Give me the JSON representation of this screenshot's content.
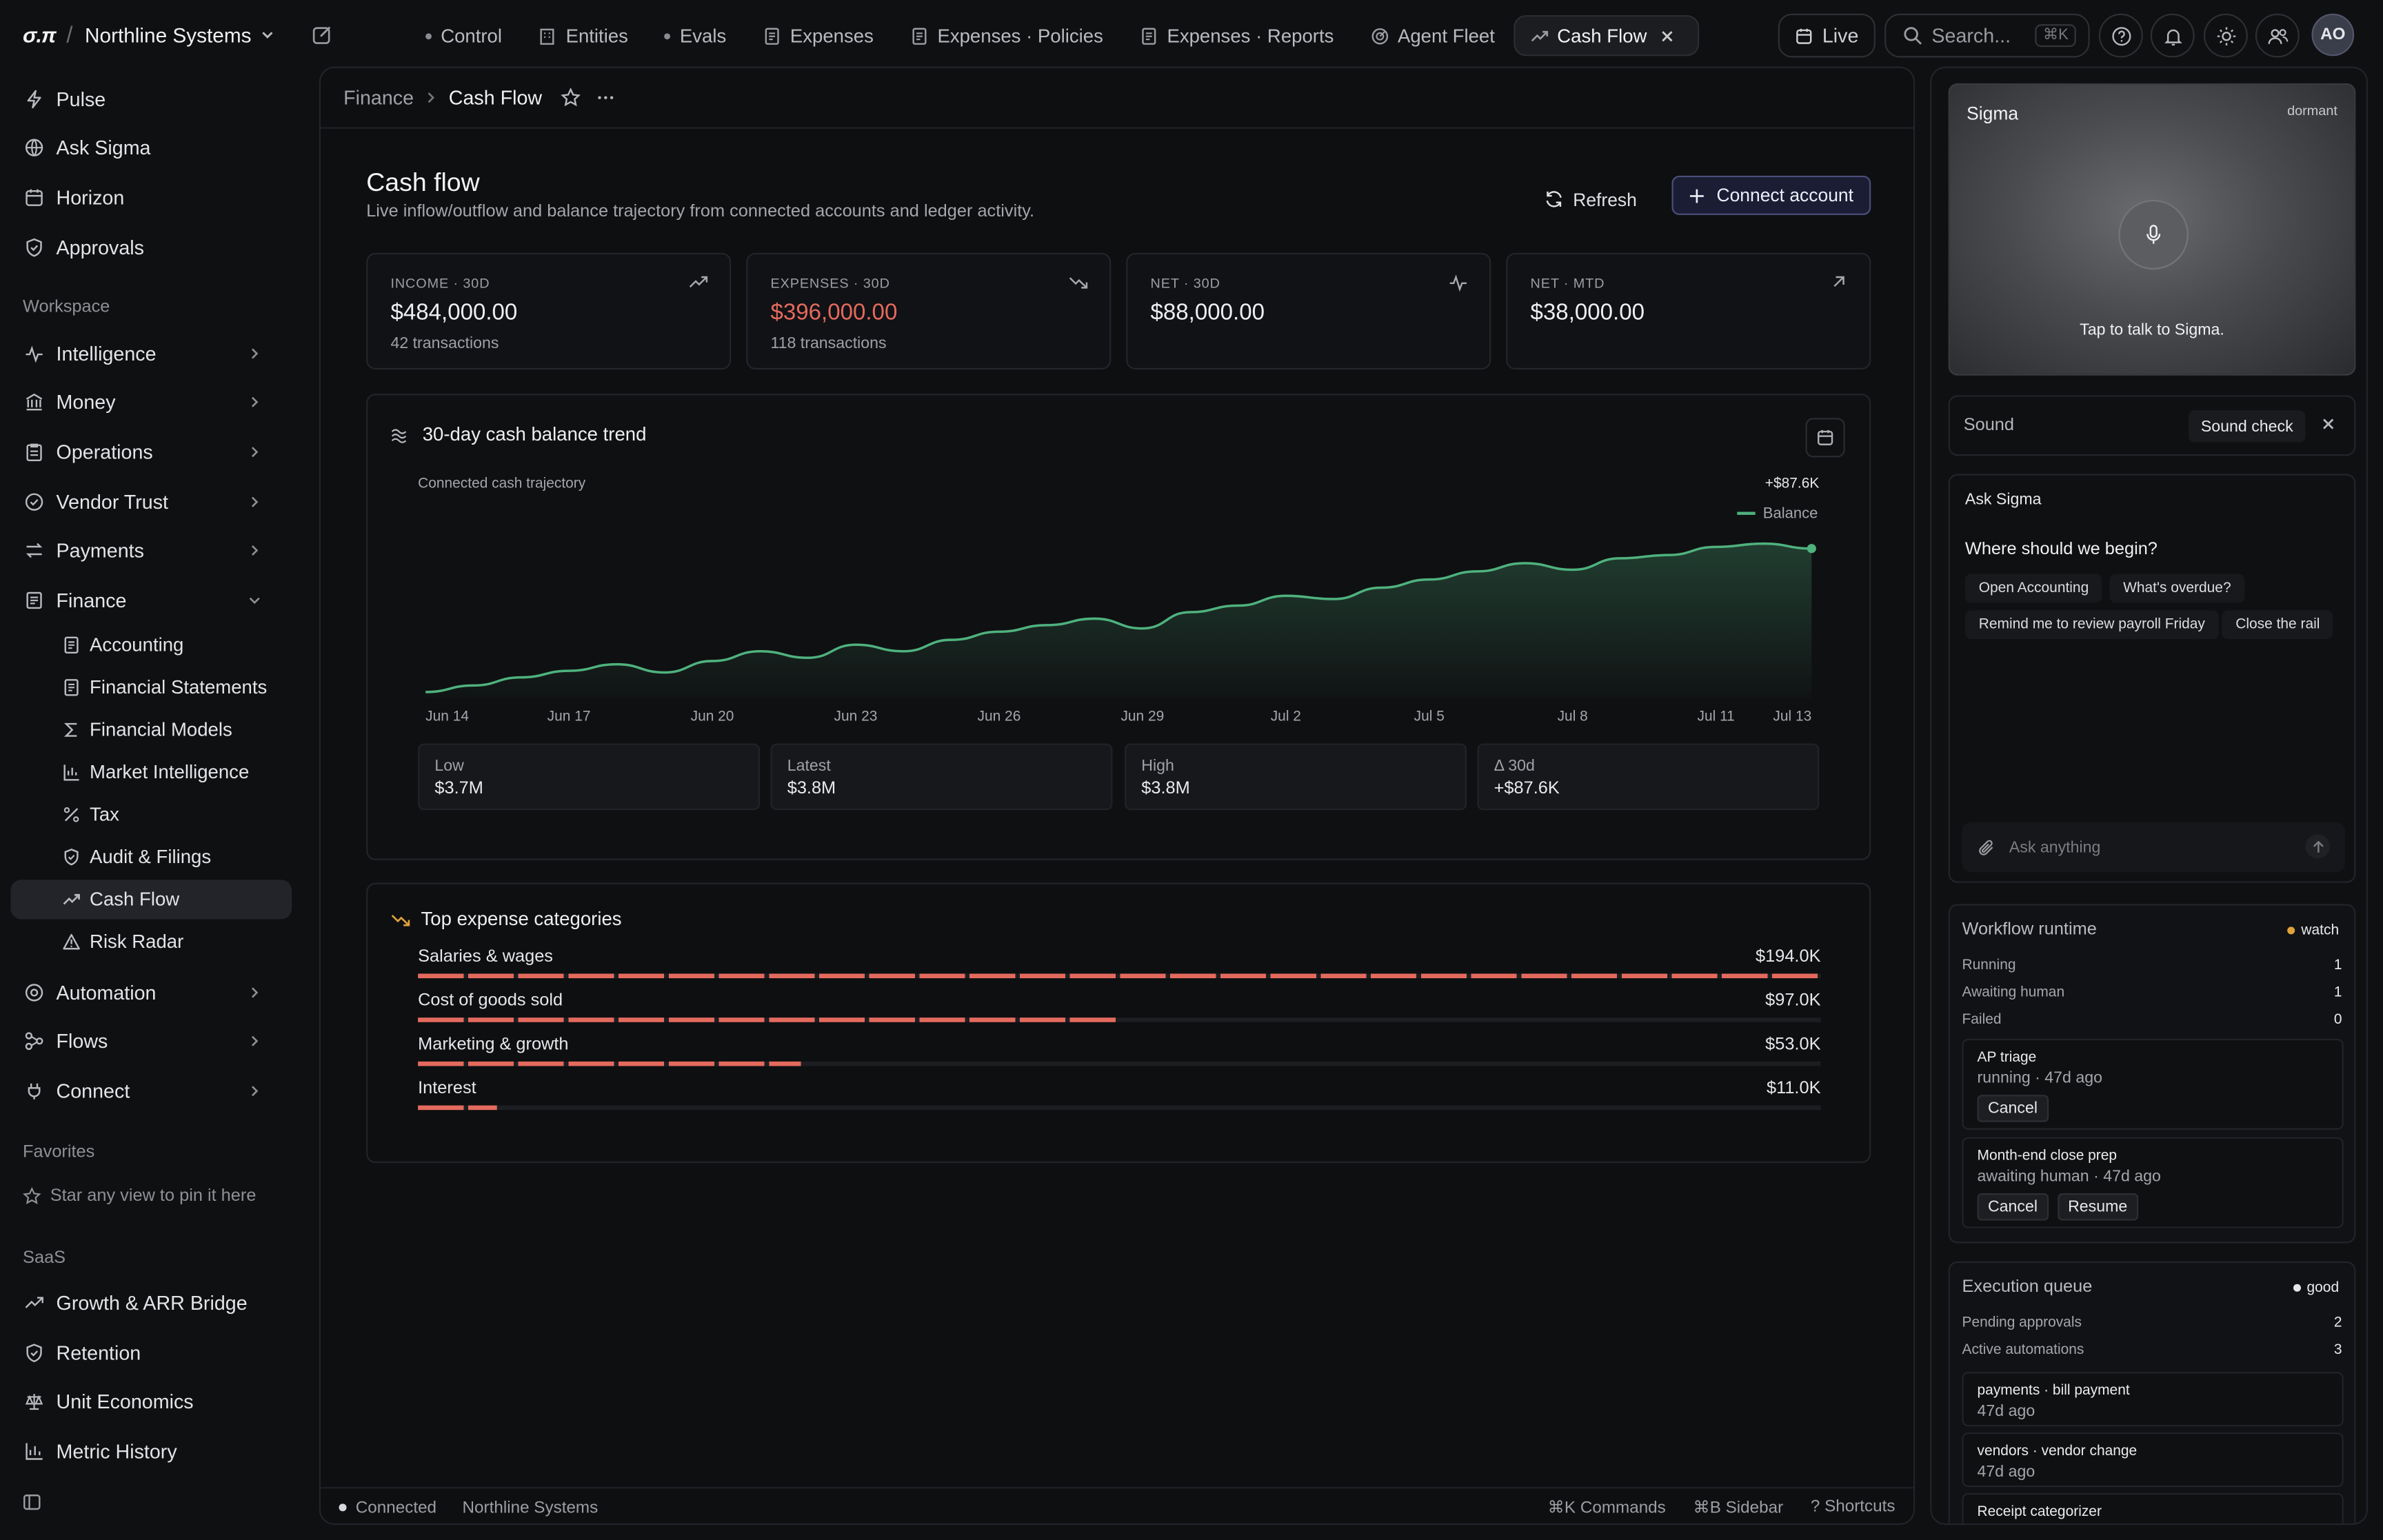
{
  "topbar": {
    "logo": "σ.π",
    "org": "Northline Systems",
    "tabs": [
      {
        "label": "Control",
        "icon": "dot"
      },
      {
        "label": "Entities",
        "icon": "building-icon"
      },
      {
        "label": "Evals",
        "icon": "dot"
      },
      {
        "label": "Expenses",
        "icon": "receipt-icon"
      },
      {
        "label": "Expenses · Policies",
        "icon": "receipt-icon"
      },
      {
        "label": "Expenses · Reports",
        "icon": "receipt-icon"
      },
      {
        "label": "Agent Fleet",
        "icon": "radar-icon"
      }
    ],
    "active_tab": "Cash Flow",
    "live_label": "Live",
    "search_placeholder": "Search...",
    "search_shortcut": "⌘K",
    "avatar_initials": "AO"
  },
  "sidebar": {
    "top_items": [
      {
        "label": "Pulse",
        "icon": "bolt-icon"
      },
      {
        "label": "Ask Sigma",
        "icon": "globe-icon"
      },
      {
        "label": "Horizon",
        "icon": "calendar-icon"
      },
      {
        "label": "Approvals",
        "icon": "shield-check-icon"
      }
    ],
    "workspace_label": "Workspace",
    "workspace_items": [
      {
        "label": "Intelligence",
        "icon": "pulse-icon"
      },
      {
        "label": "Money",
        "icon": "bank-icon"
      },
      {
        "label": "Operations",
        "icon": "clipboard-icon"
      },
      {
        "label": "Vendor Trust",
        "icon": "check-circle-icon"
      },
      {
        "label": "Payments",
        "icon": "arrows-icon"
      },
      {
        "label": "Finance",
        "icon": "receipt-icon"
      }
    ],
    "finance_items": [
      {
        "label": "Accounting",
        "icon": "document-icon"
      },
      {
        "label": "Financial Statements",
        "icon": "document-icon"
      },
      {
        "label": "Financial Models",
        "icon": "sigma-icon"
      },
      {
        "label": "Market Intelligence",
        "icon": "bar-chart-icon"
      },
      {
        "label": "Tax",
        "icon": "percent-icon"
      },
      {
        "label": "Audit & Filings",
        "icon": "shield-icon"
      },
      {
        "label": "Cash Flow",
        "icon": "trend-up-icon"
      },
      {
        "label": "Risk Radar",
        "icon": "warning-icon"
      }
    ],
    "bottom_items": [
      {
        "label": "Automation",
        "icon": "robot-icon"
      },
      {
        "label": "Flows",
        "icon": "flow-icon"
      },
      {
        "label": "Connect",
        "icon": "plug-icon"
      }
    ],
    "favorites_label": "Favorites",
    "favorites_hint": "Star any view to pin it here",
    "saas_label": "SaaS",
    "saas_items": [
      {
        "label": "Growth & ARR Bridge",
        "icon": "trend-up-icon"
      },
      {
        "label": "Retention",
        "icon": "shield-icon"
      },
      {
        "label": "Unit Economics",
        "icon": "scale-icon"
      },
      {
        "label": "Metric History",
        "icon": "bar-chart-icon"
      }
    ]
  },
  "main": {
    "breadcrumb": {
      "parent": "Finance",
      "current": "Cash Flow"
    },
    "title": "Cash flow",
    "subtitle": "Live inflow/outflow and balance trajectory from connected accounts and ledger activity.",
    "refresh_label": "Refresh",
    "connect_label": "Connect account",
    "kpis": [
      {
        "label": "INCOME · 30D",
        "value": "$484,000.00",
        "meta": "42 transactions",
        "icon": "trend-up-icon",
        "negative": false
      },
      {
        "label": "EXPENSES · 30D",
        "value": "$396,000.00",
        "meta": "118 transactions",
        "icon": "trend-down-icon",
        "negative": true
      },
      {
        "label": "NET · 30D",
        "value": "$88,000.00",
        "meta": "",
        "icon": "pulse-icon",
        "negative": false
      },
      {
        "label": "NET · MTD",
        "value": "$38,000.00",
        "meta": "",
        "icon": "arrow-up-right-icon",
        "negative": false
      }
    ],
    "trend": {
      "title": "30-day cash balance trend",
      "caption": "Connected cash trajectory",
      "delta_label": "+$87.6K",
      "legend": "Balance",
      "stats": [
        {
          "label": "Low",
          "value": "$3.7M"
        },
        {
          "label": "Latest",
          "value": "$3.8M"
        },
        {
          "label": "High",
          "value": "$3.8M"
        },
        {
          "label": "Δ 30d",
          "value": "+$87.6K"
        }
      ]
    },
    "expenses": {
      "title": "Top expense categories",
      "items": [
        {
          "name": "Salaries & wages",
          "value": "$194.0K",
          "amount": 194.0
        },
        {
          "name": "Cost of goods sold",
          "value": "$97.0K",
          "amount": 97.0
        },
        {
          "name": "Marketing & growth",
          "value": "$53.0K",
          "amount": 53.0
        },
        {
          "name": "Interest",
          "value": "$11.0K",
          "amount": 11.0
        }
      ]
    },
    "status": {
      "connected": "Connected",
      "org": "Northline Systems",
      "commands": "⌘K Commands",
      "sidebar": "⌘B Sidebar",
      "shortcuts": "? Shortcuts"
    }
  },
  "chart_data": {
    "type": "area",
    "x": [
      "Jun 14",
      "Jun 15",
      "Jun 16",
      "Jun 17",
      "Jun 18",
      "Jun 19",
      "Jun 20",
      "Jun 21",
      "Jun 22",
      "Jun 23",
      "Jun 24",
      "Jun 25",
      "Jun 26",
      "Jun 27",
      "Jun 28",
      "Jun 29",
      "Jun 30",
      "Jul 1",
      "Jul 2",
      "Jul 3",
      "Jul 4",
      "Jul 5",
      "Jul 6",
      "Jul 7",
      "Jul 8",
      "Jul 9",
      "Jul 10",
      "Jul 11",
      "Jul 12",
      "Jul 13"
    ],
    "x_ticks": [
      "Jun 14",
      "Jun 17",
      "Jun 20",
      "Jun 23",
      "Jun 26",
      "Jun 29",
      "Jul 2",
      "Jul 5",
      "Jul 8",
      "Jul 11",
      "Jul 13"
    ],
    "series": [
      {
        "name": "Balance",
        "values": [
          3712,
          3716,
          3721,
          3725,
          3729,
          3724,
          3731,
          3737,
          3733,
          3741,
          3737,
          3744,
          3749,
          3753,
          3757,
          3751,
          3761,
          3765,
          3771,
          3769,
          3776,
          3781,
          3786,
          3791,
          3787,
          3794,
          3796,
          3801,
          3803,
          3800
        ]
      }
    ],
    "ylabel": "",
    "xlabel": "",
    "y_units": "$K",
    "grid": false,
    "legend": "top-right",
    "color": "#4fb27e"
  },
  "right_panel": {
    "voice": {
      "title": "Sigma",
      "state": "dormant",
      "hint": "Tap to talk to Sigma."
    },
    "sound": {
      "label": "Sound",
      "check": "Sound check"
    },
    "ask": {
      "title": "Ask Sigma",
      "question": "Where should we begin?",
      "chips": [
        "Open Accounting",
        "What's overdue?",
        "Remind me to review payroll Friday",
        "Close the rail"
      ],
      "placeholder": "Ask anything"
    },
    "workflow": {
      "title": "Workflow runtime",
      "badge": "watch",
      "badge_color": "#e0a23c",
      "rows": [
        {
          "label": "Running",
          "value": "1"
        },
        {
          "label": "Awaiting human",
          "value": "1"
        },
        {
          "label": "Failed",
          "value": "0"
        }
      ],
      "jobs": [
        {
          "title": "AP triage",
          "status": "running · 47d ago",
          "buttons": [
            "Cancel"
          ]
        },
        {
          "title": "Month-end close prep",
          "status": "awaiting human · 47d ago",
          "buttons": [
            "Cancel",
            "Resume"
          ]
        }
      ]
    },
    "queue": {
      "title": "Execution queue",
      "badge": "good",
      "badge_color": "#e6e6e6",
      "rows": [
        {
          "label": "Pending approvals",
          "value": "2"
        },
        {
          "label": "Active automations",
          "value": "3"
        }
      ],
      "items": [
        {
          "title": "payments · bill payment",
          "sub": "47d ago"
        },
        {
          "title": "vendors · vendor change",
          "sub": "47d ago"
        },
        {
          "title": "Receipt categorizer",
          "sub": ""
        }
      ]
    }
  }
}
